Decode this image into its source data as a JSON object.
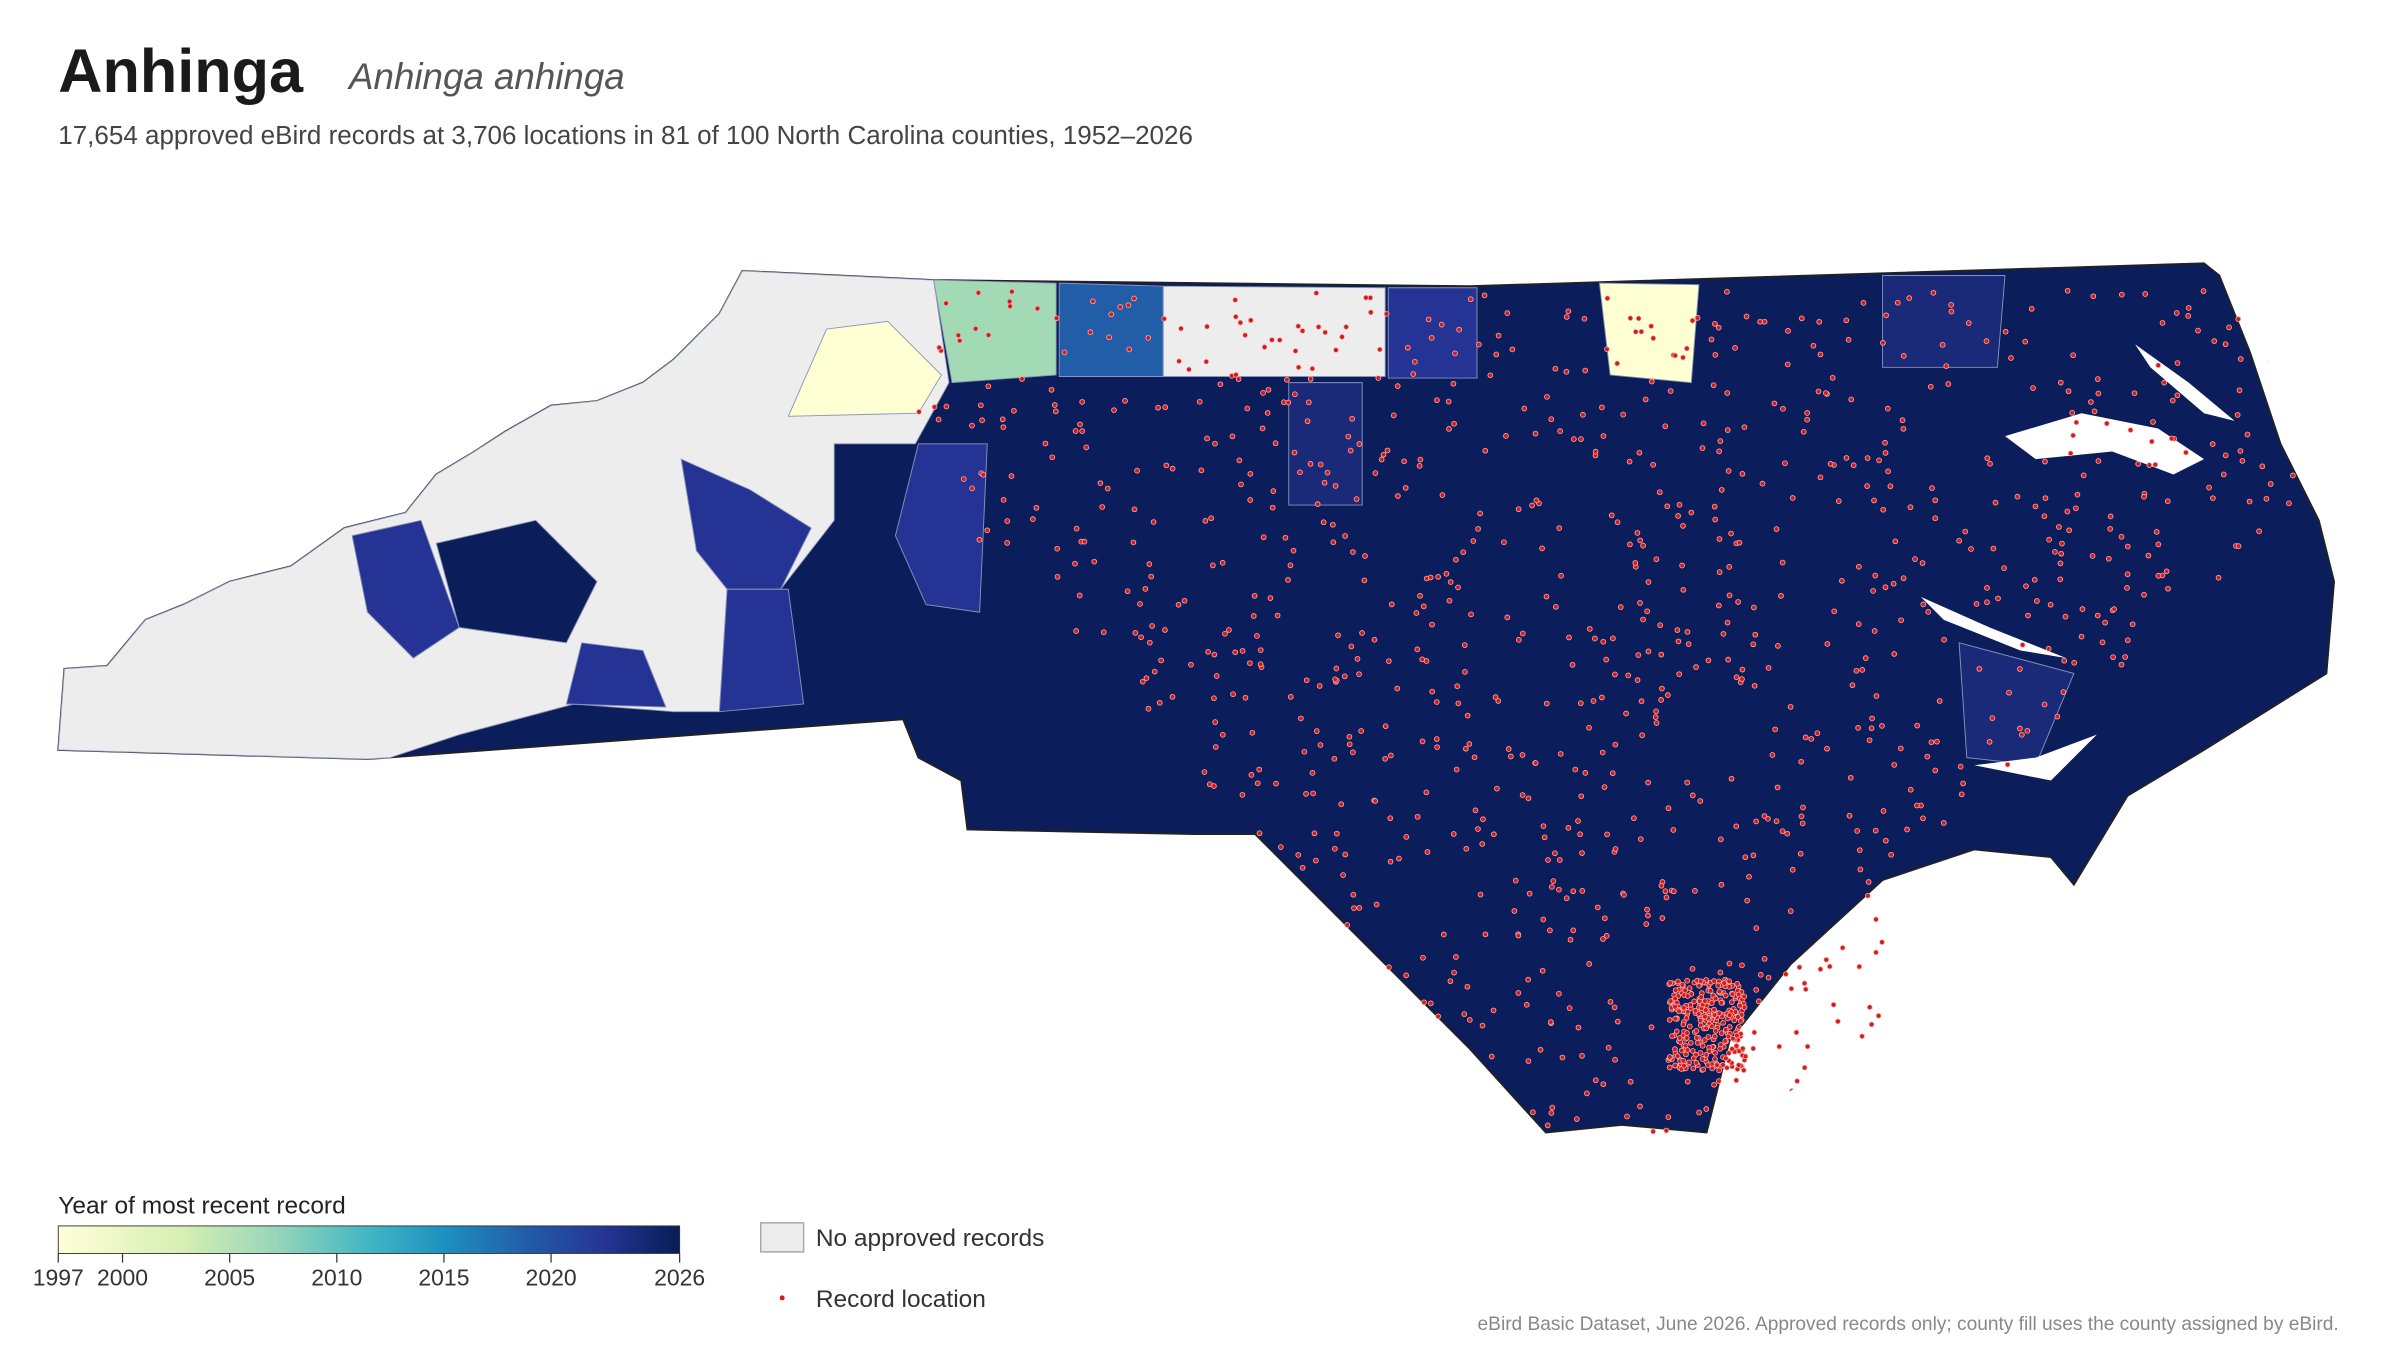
{
  "header": {
    "title": "Anhinga",
    "scientific_name": "Anhinga anhinga",
    "subtitle": "17,654 approved eBird records at 3,706 locations in 81 of 100 North Carolina counties, 1952–2026"
  },
  "legend": {
    "title": "Year of most recent record",
    "range": [
      1997,
      2026
    ],
    "ticks": [
      1997,
      2000,
      2005,
      2010,
      2015,
      2020,
      2026
    ],
    "no_records_label": "No approved records",
    "record_label": "Record location"
  },
  "footer": "eBird Basic Dataset, June 2026. Approved records only; county fill uses the county assigned by eBird."
}
